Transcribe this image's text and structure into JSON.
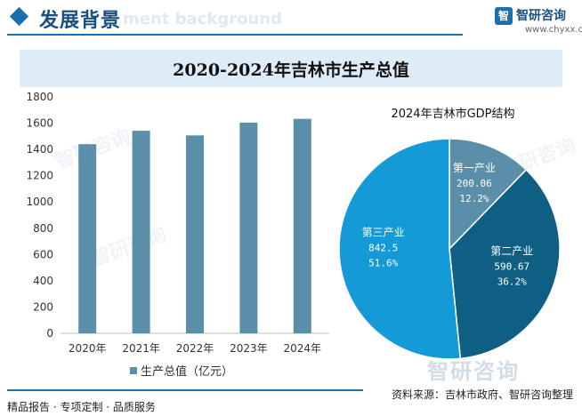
{
  "header": {
    "title": "发展背景",
    "ghost_text": "ment background"
  },
  "brand": {
    "name": "智研咨询",
    "url": "www.chyxx.com",
    "mark": "智",
    "watermark": "智研咨询"
  },
  "banner": {
    "title": "2020-2024年吉林市生产总值"
  },
  "chart_data": [
    {
      "type": "bar",
      "categories": [
        "2020年",
        "2021年",
        "2022年",
        "2023年",
        "2024年"
      ],
      "values": [
        1440,
        1542,
        1507,
        1604,
        1633
      ],
      "yticks": [
        "0",
        "200",
        "400",
        "600",
        "800",
        "1000",
        "1200",
        "1400",
        "1600",
        "1800"
      ],
      "ylim": [
        0,
        1800
      ],
      "legend": "生产总值（亿元）",
      "legend_position": "bottom",
      "color": "#5b8ea8",
      "grid": false
    },
    {
      "type": "pie",
      "title": "2024年吉林市GDP结构",
      "slices": [
        {
          "name": "第一产业",
          "value": "200.06",
          "percent": "12.2%",
          "color": "#5b8ea8"
        },
        {
          "name": "第二产业",
          "value": "590.67",
          "percent": "36.2%",
          "color": "#0f5f85"
        },
        {
          "name": "第三产业",
          "value": "842.5",
          "percent": "51.6%",
          "color": "#149ad6"
        }
      ]
    }
  ],
  "footer": {
    "left": "精品报告 · 专项定制 · 品质服务",
    "right": "资料来源：吉林市政府、智研咨询整理"
  }
}
